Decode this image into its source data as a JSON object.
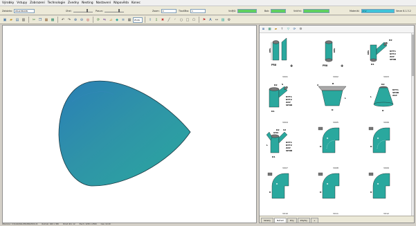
{
  "menu": [
    "Výrobky",
    "Vstupy",
    "Zobrazení",
    "Technologie",
    "Zvedny",
    "Nesting",
    "Nastavení",
    "Nápověda",
    "Konec"
  ],
  "fields": {
    "zakazka_label": "Zakázka:",
    "zakazka_value": "WALDMANN",
    "uhel_label": "Úhel:",
    "uhel_value": "0",
    "tloustka_label": "Tloušťka:",
    "tloustka_value": "1",
    "zoom_label": "Zoom:",
    "posun_label": "Posun:",
    "vnejsi_label": "Vnější:",
    "vnejsi_value": "",
    "bok_label": "Bok:",
    "bok_value": "",
    "vnitrni_label": "Vnitřní:",
    "vnitrni_value": "",
    "material_label": "Materiál:",
    "material_value": "ZnV",
    "version": "Verze 8.1.3.2"
  },
  "toolbar": {
    "icons": [
      "new-icon",
      "open-icon",
      "save-icon",
      "print-icon",
      "cut-icon",
      "copy-icon",
      "paste-icon",
      "table-icon",
      "undo-icon",
      "redo-icon",
      "zoom-in-icon",
      "zoom-out-icon",
      "zoom-fit-icon",
      "rotate-icon",
      "mirror-icon",
      "measure-icon",
      "color-icon",
      "layer-icon",
      "grid-icon",
      "export-icon",
      "import-icon",
      "settings-icon"
    ],
    "select_value": "Žlutá"
  },
  "parts": [
    {
      "code": "V001",
      "labels": [
        "PRU",
        "DEL"
      ]
    },
    {
      "code": "V002",
      "labels": [
        "PRU",
        "DEL"
      ]
    },
    {
      "code": "V003",
      "labels": [
        "D2",
        "DEL",
        "D1",
        "NYT1",
        "NYT2",
        "ZAP",
        "SPNR"
      ]
    },
    {
      "code": "V004",
      "labels": [
        "D2",
        "S",
        "D1",
        "NYT1",
        "NYT2",
        "ZAP",
        "SPNR"
      ]
    },
    {
      "code": "V005",
      "labels": [
        "A",
        "B",
        "L",
        "D"
      ]
    },
    {
      "code": "V006",
      "labels": [
        "D2",
        "NYT1",
        "SPNR",
        "ZAP",
        "L",
        "D"
      ]
    },
    {
      "code": "V007",
      "labels": [
        "D2",
        "UHA",
        "S3",
        "L",
        "D1",
        "NYT1",
        "NYT2",
        "ZAP",
        "SPNR"
      ]
    },
    {
      "code": "V008",
      "labels": [
        "R",
        "D"
      ]
    },
    {
      "code": "V009",
      "labels": [
        "R",
        "D"
      ]
    },
    {
      "code": "V010",
      "labels": [
        "R",
        "D"
      ]
    },
    {
      "code": "V011",
      "labels": [
        "R",
        "D"
      ]
    },
    {
      "code": "V012",
      "labels": [
        "R",
        "D"
      ]
    }
  ],
  "tabs": [
    "Sklady",
    "Nářadí",
    "Díly",
    "Zbytky",
    "+"
  ],
  "status": [
    "Otevřeno: C:\\Data\\WALDMANN\\V004.dil",
    "Rozměr: 460 x 380",
    "Počet dílů: 12",
    "Plech: 1250 x 2500",
    "Čas: 12:40"
  ],
  "colors": {
    "accent": "#2aa89e",
    "shape": "#2f8fae",
    "green": "#5fcf5f",
    "cyan": "#3fc3d8"
  }
}
